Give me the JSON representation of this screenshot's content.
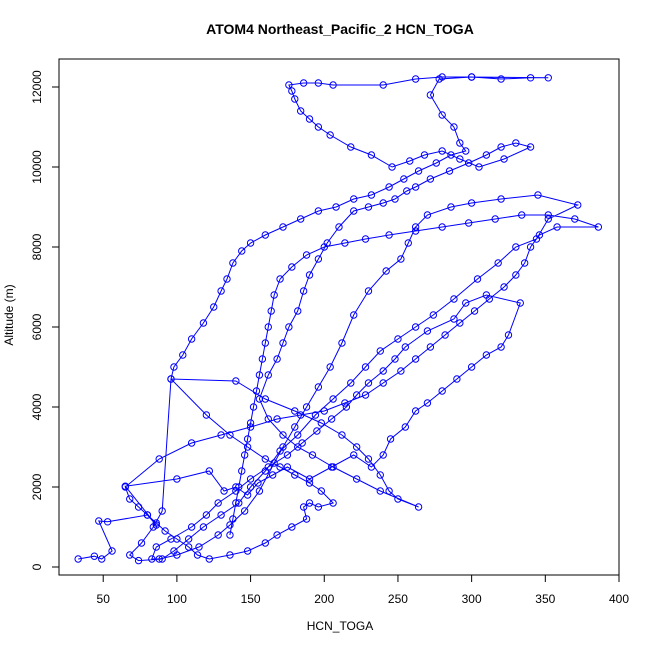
{
  "chart_data": {
    "type": "line",
    "title": "ATOM4 Northeast_Pacific_2 HCN_TOGA",
    "xlabel": "HCN_TOGA",
    "ylabel": "Altitude (m)",
    "xlim": [
      20,
      400
    ],
    "ylim": [
      -200,
      12700
    ],
    "xticks": [
      50,
      100,
      150,
      200,
      250,
      300,
      350,
      400
    ],
    "yticks": [
      0,
      2000,
      4000,
      6000,
      8000,
      10000,
      12000
    ],
    "grid": false,
    "marker": "open-circle",
    "series": [
      {
        "color": "#0000ff",
        "points": [
          [
            33,
            200
          ],
          [
            44,
            270
          ],
          [
            49,
            200
          ],
          [
            56,
            400
          ],
          [
            47,
            1150
          ],
          [
            53,
            1130
          ],
          [
            80,
            1300
          ],
          [
            86,
            1050
          ],
          [
            65,
            2020
          ],
          [
            100,
            2200
          ],
          [
            122,
            2400
          ],
          [
            132,
            1900
          ],
          [
            140,
            2000
          ],
          [
            148,
            1800
          ],
          [
            155,
            2100
          ],
          [
            165,
            2300
          ],
          [
            175,
            2500
          ],
          [
            190,
            2200
          ],
          [
            205,
            2500
          ],
          [
            220,
            2800
          ],
          [
            232,
            2500
          ],
          [
            240,
            2800
          ],
          [
            245,
            3200
          ],
          [
            255,
            3500
          ],
          [
            262,
            3900
          ],
          [
            270,
            4100
          ],
          [
            280,
            4400
          ],
          [
            290,
            4700
          ],
          [
            300,
            5000
          ],
          [
            310,
            5300
          ],
          [
            320,
            5500
          ],
          [
            325,
            5800
          ],
          [
            333,
            6600
          ],
          [
            310,
            6800
          ],
          [
            296,
            6600
          ],
          [
            288,
            6200
          ],
          [
            270,
            5900
          ],
          [
            255,
            5500
          ],
          [
            248,
            5200
          ],
          [
            240,
            4900
          ],
          [
            230,
            4600
          ],
          [
            222,
            4300
          ],
          [
            215,
            4000
          ],
          [
            205,
            3700
          ],
          [
            195,
            3400
          ],
          [
            185,
            3100
          ],
          [
            175,
            2800
          ],
          [
            162,
            2500
          ],
          [
            150,
            2200
          ],
          [
            140,
            1900
          ],
          [
            128,
            1600
          ],
          [
            120,
            1300
          ],
          [
            110,
            1000
          ],
          [
            96,
            700
          ],
          [
            86,
            500
          ],
          [
            83,
            200
          ],
          [
            88,
            200
          ],
          [
            100,
            300
          ],
          [
            115,
            500
          ],
          [
            128,
            800
          ],
          [
            136,
            1050
          ],
          [
            146,
            1400
          ],
          [
            156,
            1900
          ],
          [
            166,
            2600
          ],
          [
            172,
            3000
          ],
          [
            180,
            3500
          ],
          [
            188,
            4000
          ],
          [
            196,
            4500
          ],
          [
            204,
            5000
          ],
          [
            212,
            5600
          ],
          [
            220,
            6300
          ],
          [
            230,
            6900
          ],
          [
            242,
            7400
          ],
          [
            252,
            7700
          ],
          [
            257,
            8100
          ],
          [
            262,
            8500
          ],
          [
            270,
            8800
          ],
          [
            286,
            9000
          ],
          [
            300,
            9100
          ],
          [
            320,
            9200
          ],
          [
            345,
            9300
          ],
          [
            372,
            9050
          ],
          [
            352,
            8700
          ],
          [
            344,
            8200
          ],
          [
            330,
            8000
          ],
          [
            318,
            7600
          ],
          [
            304,
            7200
          ],
          [
            288,
            6700
          ],
          [
            274,
            6300
          ],
          [
            262,
            6000
          ],
          [
            250,
            5700
          ],
          [
            238,
            5400
          ],
          [
            228,
            5000
          ],
          [
            218,
            4600
          ],
          [
            206,
            4200
          ],
          [
            194,
            3800
          ],
          [
            182,
            3300
          ],
          [
            170,
            2900
          ],
          [
            160,
            2400
          ],
          [
            150,
            2000
          ],
          [
            142,
            1600
          ],
          [
            130,
            1300
          ],
          [
            118,
            1000
          ],
          [
            108,
            700
          ],
          [
            98,
            400
          ],
          [
            90,
            200
          ],
          [
            74,
            160
          ],
          [
            68,
            300
          ],
          [
            76,
            600
          ],
          [
            84,
            1000
          ],
          [
            90,
            1400
          ],
          [
            96,
            4700
          ],
          [
            140,
            4650
          ],
          [
            160,
            4200
          ],
          [
            180,
            3900
          ],
          [
            198,
            3600
          ],
          [
            212,
            3300
          ],
          [
            222,
            3000
          ],
          [
            230,
            2700
          ],
          [
            238,
            2300
          ],
          [
            244,
            1900
          ],
          [
            250,
            1700
          ],
          [
            264,
            1500
          ],
          [
            238,
            1900
          ],
          [
            222,
            2200
          ],
          [
            206,
            2500
          ],
          [
            192,
            2800
          ],
          [
            182,
            3000
          ],
          [
            172,
            3300
          ],
          [
            162,
            3700
          ],
          [
            156,
            4200
          ],
          [
            162,
            4800
          ],
          [
            168,
            5200
          ],
          [
            172,
            5600
          ],
          [
            176,
            6000
          ],
          [
            182,
            6400
          ],
          [
            186,
            6900
          ],
          [
            190,
            7300
          ],
          [
            196,
            7700
          ],
          [
            202,
            8100
          ],
          [
            210,
            8500
          ],
          [
            220,
            8900
          ],
          [
            230,
            9000
          ],
          [
            240,
            9100
          ],
          [
            248,
            9200
          ],
          [
            256,
            9400
          ],
          [
            262,
            9500
          ],
          [
            272,
            9700
          ],
          [
            285,
            9900
          ],
          [
            298,
            10100
          ],
          [
            310,
            10300
          ],
          [
            320,
            10500
          ],
          [
            330,
            10600
          ],
          [
            340,
            10500
          ],
          [
            322,
            10200
          ],
          [
            305,
            10000
          ],
          [
            292,
            10200
          ],
          [
            280,
            10400
          ],
          [
            268,
            10300
          ],
          [
            258,
            10150
          ],
          [
            246,
            10000
          ],
          [
            232,
            10300
          ],
          [
            218,
            10500
          ],
          [
            204,
            10800
          ],
          [
            196,
            11000
          ],
          [
            190,
            11200
          ],
          [
            184,
            11400
          ],
          [
            180,
            11700
          ],
          [
            178,
            11900
          ],
          [
            176,
            12050
          ],
          [
            186,
            12100
          ],
          [
            196,
            12100
          ],
          [
            206,
            12050
          ],
          [
            240,
            12050
          ],
          [
            262,
            12200
          ],
          [
            280,
            12250
          ],
          [
            300,
            12250
          ],
          [
            320,
            12200
          ],
          [
            340,
            12230
          ],
          [
            352,
            12230
          ],
          [
            300,
            12250
          ],
          [
            278,
            12200
          ],
          [
            272,
            11800
          ],
          [
            280,
            11300
          ],
          [
            288,
            11000
          ],
          [
            292,
            10600
          ],
          [
            296,
            10400
          ],
          [
            286,
            10300
          ],
          [
            276,
            10100
          ],
          [
            264,
            9900
          ],
          [
            254,
            9700
          ],
          [
            244,
            9500
          ],
          [
            232,
            9300
          ],
          [
            220,
            9200
          ],
          [
            208,
            9000
          ],
          [
            196,
            8900
          ],
          [
            184,
            8700
          ],
          [
            172,
            8500
          ],
          [
            160,
            8300
          ],
          [
            150,
            8100
          ],
          [
            144,
            7900
          ],
          [
            138,
            7600
          ],
          [
            134,
            7200
          ],
          [
            130,
            6900
          ],
          [
            125,
            6500
          ],
          [
            118,
            6100
          ],
          [
            110,
            5700
          ],
          [
            104,
            5300
          ],
          [
            98,
            5000
          ],
          [
            96,
            4700
          ],
          [
            120,
            3800
          ],
          [
            136,
            3300
          ],
          [
            148,
            3000
          ],
          [
            160,
            2700
          ],
          [
            170,
            2500
          ],
          [
            180,
            2300
          ],
          [
            190,
            2100
          ],
          [
            198,
            1900
          ],
          [
            206,
            1600
          ],
          [
            196,
            1500
          ],
          [
            190,
            1600
          ],
          [
            186,
            1500
          ],
          [
            188,
            1200
          ],
          [
            178,
            1000
          ],
          [
            168,
            800
          ],
          [
            160,
            600
          ],
          [
            148,
            400
          ],
          [
            136,
            300
          ],
          [
            122,
            200
          ],
          [
            114,
            300
          ],
          [
            108,
            500
          ],
          [
            100,
            700
          ],
          [
            92,
            900
          ],
          [
            86,
            1100
          ],
          [
            80,
            1300
          ],
          [
            74,
            1500
          ],
          [
            68,
            1700
          ],
          [
            65,
            2000
          ],
          [
            88,
            2700
          ],
          [
            110,
            3100
          ],
          [
            130,
            3300
          ],
          [
            150,
            3500
          ],
          [
            168,
            3700
          ],
          [
            184,
            3800
          ],
          [
            200,
            3900
          ],
          [
            214,
            4100
          ],
          [
            228,
            4300
          ],
          [
            240,
            4600
          ],
          [
            252,
            4900
          ],
          [
            262,
            5200
          ],
          [
            272,
            5500
          ],
          [
            282,
            5800
          ],
          [
            292,
            6100
          ],
          [
            302,
            6400
          ],
          [
            312,
            6700
          ],
          [
            322,
            7000
          ],
          [
            330,
            7300
          ],
          [
            336,
            7600
          ],
          [
            340,
            8000
          ],
          [
            346,
            8300
          ],
          [
            358,
            8500
          ],
          [
            386,
            8500
          ],
          [
            370,
            8700
          ],
          [
            352,
            8800
          ],
          [
            334,
            8800
          ],
          [
            316,
            8700
          ],
          [
            298,
            8600
          ],
          [
            280,
            8500
          ],
          [
            262,
            8400
          ],
          [
            244,
            8300
          ],
          [
            228,
            8200
          ],
          [
            214,
            8100
          ],
          [
            200,
            8000
          ],
          [
            188,
            7800
          ],
          [
            178,
            7500
          ],
          [
            170,
            7200
          ],
          [
            166,
            6800
          ],
          [
            164,
            6400
          ],
          [
            162,
            6000
          ],
          [
            160,
            5600
          ],
          [
            158,
            5200
          ],
          [
            156,
            4800
          ],
          [
            154,
            4400
          ],
          [
            152,
            4000
          ],
          [
            150,
            3600
          ],
          [
            148,
            3200
          ],
          [
            146,
            2800
          ],
          [
            144,
            2400
          ],
          [
            142,
            2000
          ],
          [
            140,
            1600
          ],
          [
            138,
            1200
          ],
          [
            136,
            800
          ]
        ]
      }
    ]
  }
}
